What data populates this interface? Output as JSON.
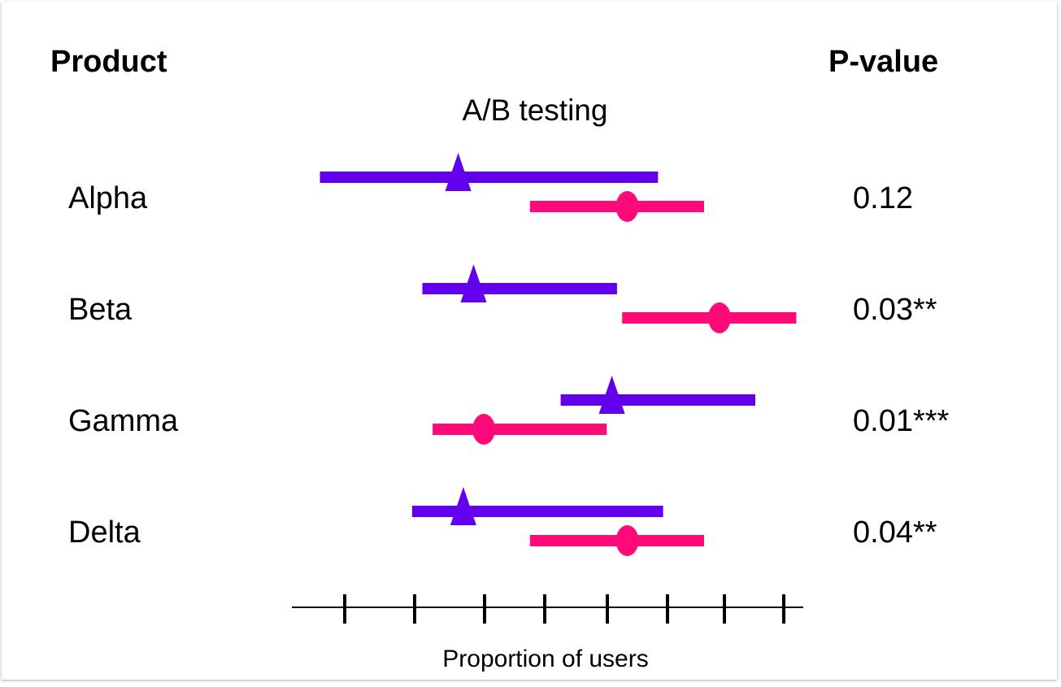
{
  "chart_data": {
    "type": "forest",
    "title": "A/B testing",
    "left_header": "Product",
    "right_header": "P-value",
    "xlabel": "Proportion of  users",
    "x_ticks": 8,
    "xlim": [
      0,
      100
    ],
    "colors": {
      "A": "#6200ee",
      "B": "#ff0a78"
    },
    "markers": {
      "A": "triangle",
      "B": "circle"
    },
    "rows": [
      {
        "product": "Alpha",
        "p_value": "0.12",
        "a": {
          "low": 5,
          "est": 32,
          "high": 71
        },
        "b": {
          "low": 46,
          "est": 65,
          "high": 80
        }
      },
      {
        "product": "Beta",
        "p_value": "0.03**",
        "a": {
          "low": 25,
          "est": 35,
          "high": 63
        },
        "b": {
          "low": 64,
          "est": 83,
          "high": 98
        }
      },
      {
        "product": "Gamma",
        "p_value": "0.01***",
        "a": {
          "low": 52,
          "est": 62,
          "high": 90
        },
        "b": {
          "low": 27,
          "est": 37,
          "high": 61
        }
      },
      {
        "product": "Delta",
        "p_value": "0.04**",
        "a": {
          "low": 23,
          "est": 33,
          "high": 72
        },
        "b": {
          "low": 46,
          "est": 65,
          "high": 80
        }
      }
    ]
  }
}
